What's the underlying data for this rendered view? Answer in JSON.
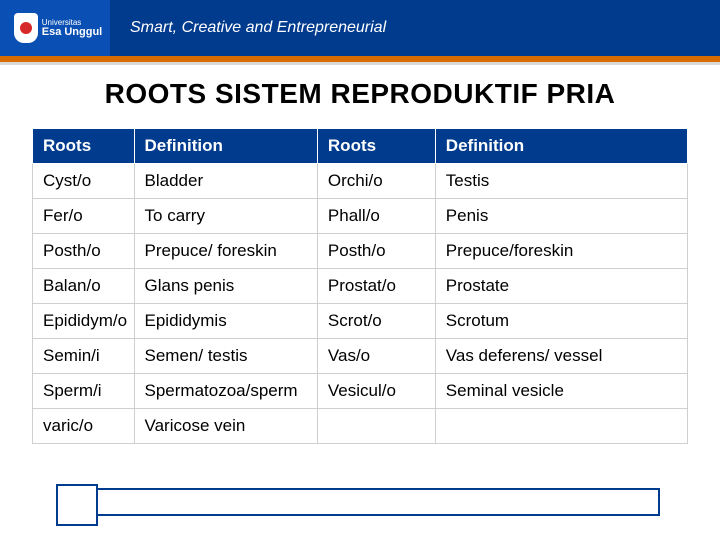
{
  "header": {
    "institution_small": "Universitas",
    "institution": "Esa Unggul",
    "tagline": "Smart, Creative and Entrepreneurial"
  },
  "title": "ROOTS SISTEM REPRODUKTIF PRIA",
  "table": {
    "columns": [
      "Roots",
      "Definition",
      "Roots",
      "Definition"
    ],
    "col_widths_pct": [
      15.5,
      28,
      18,
      38.5
    ],
    "header_bg": "#003b8e",
    "header_fg": "#ffffff",
    "cell_bg": "#ffffff",
    "cell_fg": "#000000",
    "border_color": "#cfcfcf",
    "font_size_pt": 13,
    "rows": [
      [
        "Cyst/o",
        "Bladder",
        "Orchi/o",
        "Testis"
      ],
      [
        "Fer/o",
        "To carry",
        "Phall/o",
        "Penis"
      ],
      [
        "Posth/o",
        "Prepuce/ foreskin",
        "Posth/o",
        "Prepuce/foreskin"
      ],
      [
        "Balan/o",
        "Glans penis",
        "Prostat/o",
        "Prostate"
      ],
      [
        "Epididym/o",
        "Epididymis",
        "Scrot/o",
        "Scrotum"
      ],
      [
        "Semin/i",
        "Semen/ testis",
        "Vas/o",
        "Vas deferens/ vessel"
      ],
      [
        "Sperm/i",
        "Spermatozoa/sperm",
        "Vesicul/o",
        "Seminal vesicle"
      ],
      [
        "varic/o",
        "Varicose vein",
        "",
        ""
      ]
    ]
  },
  "colors": {
    "brand_blue": "#003b8e",
    "logo_blue": "#0a4fb3",
    "accent_orange": "#d96c00",
    "light_grey": "#d9d9d9"
  }
}
